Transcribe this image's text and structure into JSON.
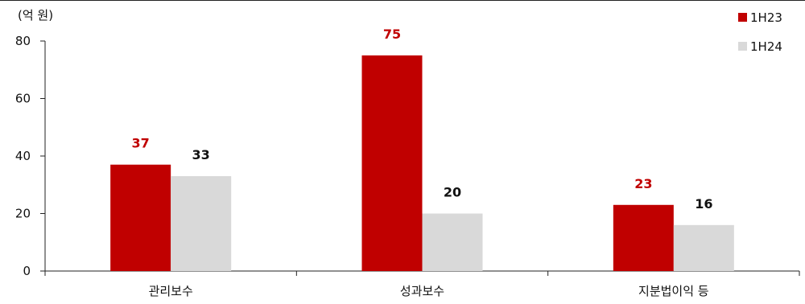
{
  "chart_data": {
    "type": "bar",
    "unit_label": "(억 원)",
    "categories": [
      "관리보수",
      "성과보수",
      "지분법이익 등"
    ],
    "series": [
      {
        "name": "1H23",
        "color": "#C00000",
        "label_color": "#C00000",
        "values": [
          37,
          75,
          23
        ]
      },
      {
        "name": "1H24",
        "color": "#D9D9D9",
        "label_color": "#111111",
        "values": [
          33,
          20,
          16
        ]
      }
    ],
    "ylim": [
      0,
      80
    ],
    "yticks": [
      0,
      20,
      40,
      60,
      80
    ],
    "grid": false,
    "legend_position": "top-right"
  }
}
